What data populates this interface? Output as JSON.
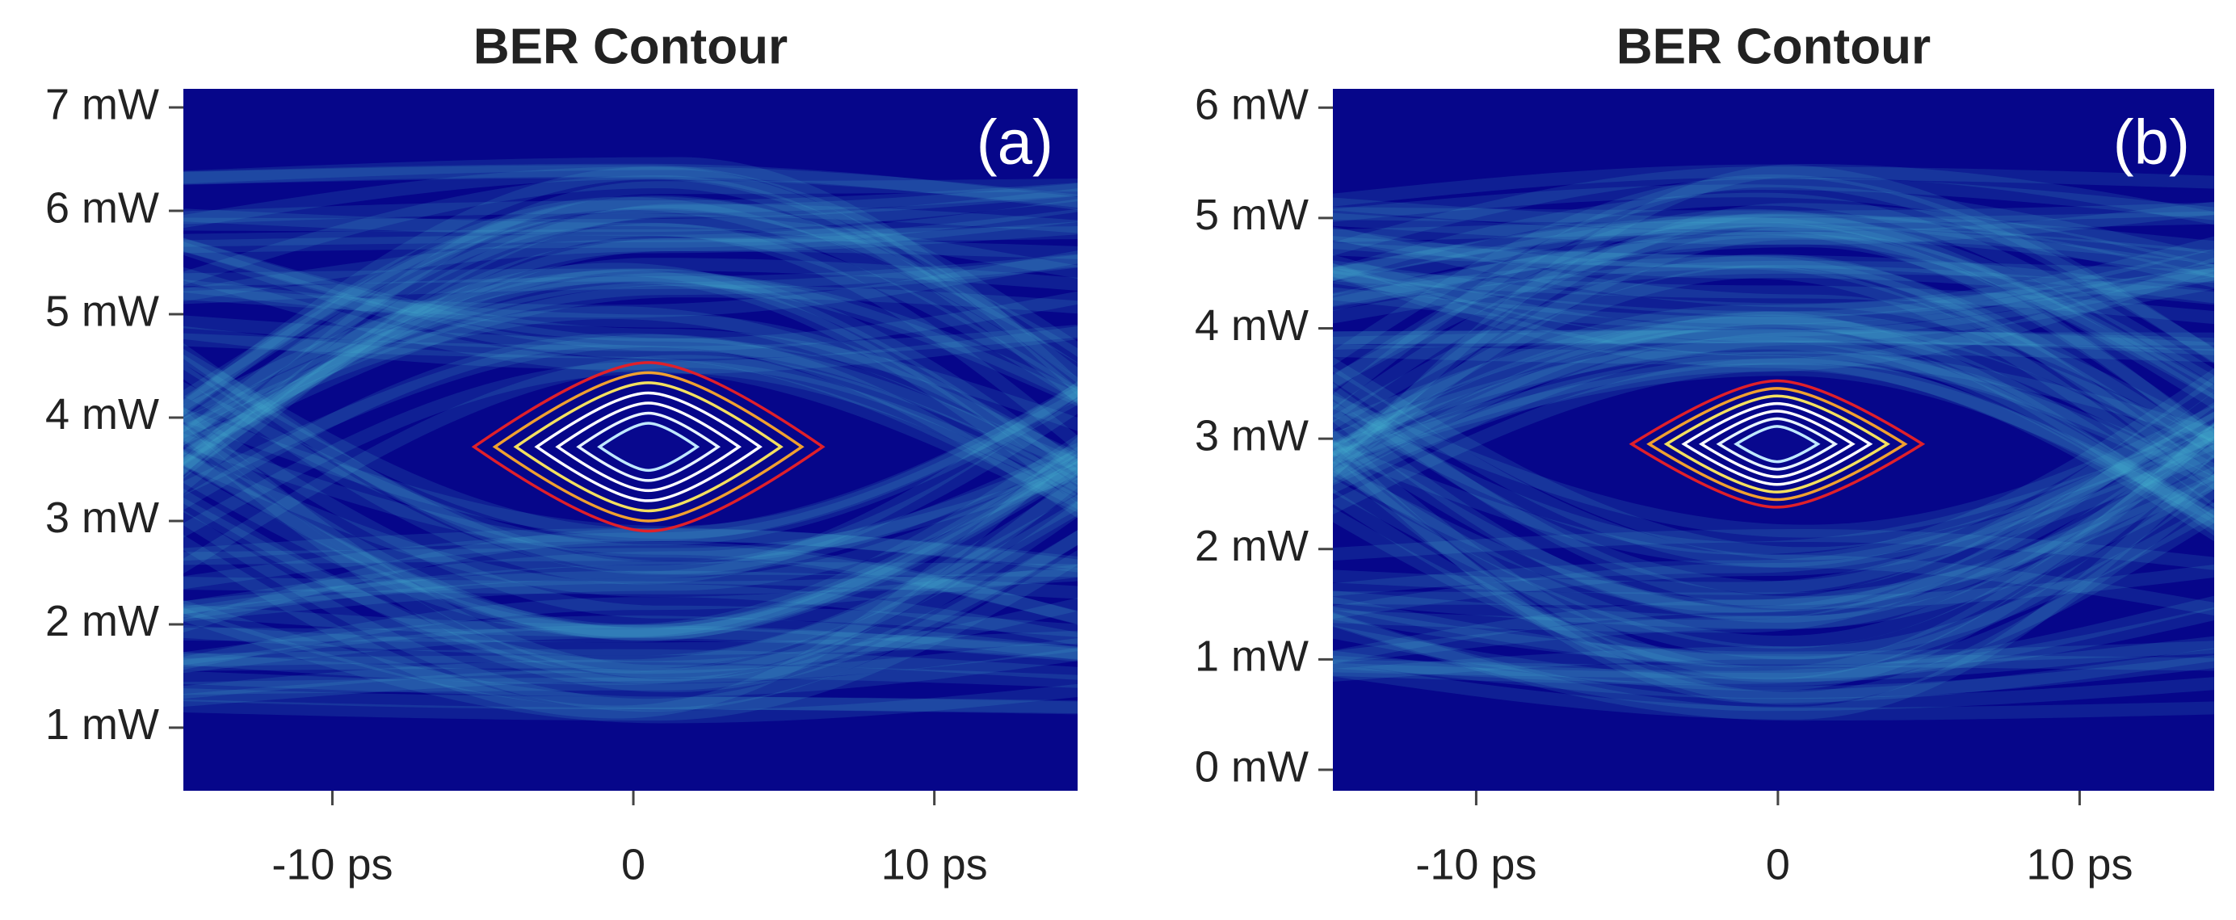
{
  "chart_data": [
    {
      "type": "eye",
      "title": "BER Contour",
      "annotation": "(a)",
      "xlim": [
        -14.95,
        14.76
      ],
      "xticks": [
        {
          "value": -10,
          "label": "-10 ps"
        },
        0,
        {
          "value": 10,
          "label": "10 ps"
        }
      ],
      "ylim": [
        0.39,
        7.18
      ],
      "yticks": [
        {
          "value": 1,
          "label": "1 mW"
        },
        {
          "value": 2,
          "label": "2 mW"
        },
        {
          "value": 3,
          "label": "3 mW"
        },
        {
          "value": 4,
          "label": "4 mW"
        },
        {
          "value": 5,
          "label": "5 mW"
        },
        {
          "value": 6,
          "label": "6 mW"
        },
        {
          "value": 7,
          "label": "7 mW"
        }
      ]
    },
    {
      "type": "eye",
      "title": "BER Contour",
      "annotation": "(b)",
      "xlim": [
        -14.75,
        14.46
      ],
      "xticks": [
        {
          "value": -10,
          "label": "-10 ps"
        },
        0,
        {
          "value": 10,
          "label": "10 ps"
        }
      ],
      "ylim": [
        -0.19,
        6.17
      ],
      "yticks": [
        {
          "value": 0,
          "label": "0 mW"
        },
        {
          "value": 1,
          "label": "1 mW"
        },
        {
          "value": 2,
          "label": "2 mW"
        },
        {
          "value": 3,
          "label": "3 mW"
        },
        {
          "value": 4,
          "label": "4 mW"
        },
        {
          "value": 5,
          "label": "5 mW"
        },
        {
          "value": 6,
          "label": "6 mW"
        }
      ]
    }
  ]
}
